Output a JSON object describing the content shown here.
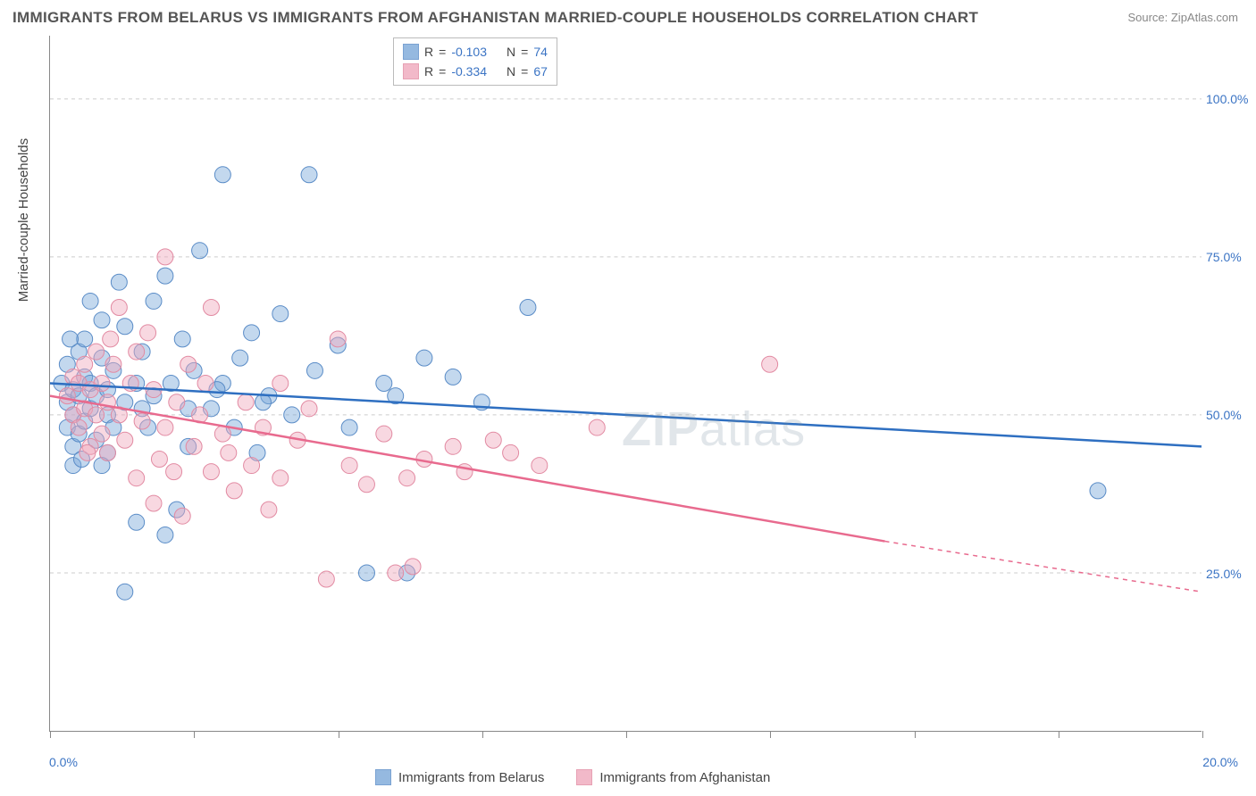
{
  "title": "IMMIGRANTS FROM BELARUS VS IMMIGRANTS FROM AFGHANISTAN MARRIED-COUPLE HOUSEHOLDS CORRELATION CHART",
  "source_prefix": "Source: ",
  "source": "ZipAtlas.com",
  "watermark_bold": "ZIP",
  "watermark_rest": "atlas",
  "yaxis_label": "Married-couple Households",
  "chart": {
    "type": "scatter-with-trendlines",
    "background_color": "#ffffff",
    "grid_color": "#cccccc",
    "axis_color": "#888888",
    "tick_label_color": "#3b74c4",
    "xlim": [
      0,
      20
    ],
    "ylim": [
      0,
      110
    ],
    "y_gridlines": [
      25,
      50,
      75,
      100
    ],
    "y_tick_labels": [
      "25.0%",
      "50.0%",
      "75.0%",
      "100.0%"
    ],
    "x_ticks": [
      0,
      2.5,
      5,
      7.5,
      10,
      12.5,
      15,
      17.5,
      20
    ],
    "x_left_label": "0.0%",
    "x_right_label": "20.0%",
    "marker_radius": 9,
    "marker_opacity": 0.45,
    "trendline_width": 2.5,
    "series": [
      {
        "name": "Immigrants from Belarus",
        "color": "#7ba8d9",
        "stroke": "#5a8cc7",
        "line_color": "#2e6fc1",
        "R": "-0.103",
        "N": "74",
        "trend": {
          "x1": 0,
          "y1": 55,
          "x2": 20,
          "y2": 45,
          "dash_from_x": 20
        },
        "points": [
          [
            0.2,
            55
          ],
          [
            0.3,
            52
          ],
          [
            0.3,
            48
          ],
          [
            0.3,
            58
          ],
          [
            0.4,
            54
          ],
          [
            0.4,
            50
          ],
          [
            0.4,
            45
          ],
          [
            0.5,
            60
          ],
          [
            0.5,
            53
          ],
          [
            0.5,
            47
          ],
          [
            0.6,
            56
          ],
          [
            0.6,
            62
          ],
          [
            0.6,
            49
          ],
          [
            0.7,
            68
          ],
          [
            0.7,
            55
          ],
          [
            0.7,
            51
          ],
          [
            0.8,
            53
          ],
          [
            0.8,
            46
          ],
          [
            0.9,
            65
          ],
          [
            0.9,
            59
          ],
          [
            1.0,
            54
          ],
          [
            1.0,
            50
          ],
          [
            1.1,
            57
          ],
          [
            1.2,
            71
          ],
          [
            1.3,
            52
          ],
          [
            1.3,
            64
          ],
          [
            1.5,
            55
          ],
          [
            1.5,
            33
          ],
          [
            1.6,
            60
          ],
          [
            1.7,
            48
          ],
          [
            1.8,
            68
          ],
          [
            1.8,
            53
          ],
          [
            2.0,
            72
          ],
          [
            2.0,
            31
          ],
          [
            2.1,
            55
          ],
          [
            2.3,
            62
          ],
          [
            2.4,
            45
          ],
          [
            2.5,
            57
          ],
          [
            2.6,
            76
          ],
          [
            2.8,
            51
          ],
          [
            3.0,
            88
          ],
          [
            3.0,
            55
          ],
          [
            3.2,
            48
          ],
          [
            3.3,
            59
          ],
          [
            3.5,
            63
          ],
          [
            3.6,
            44
          ],
          [
            3.8,
            53
          ],
          [
            4.0,
            66
          ],
          [
            4.2,
            50
          ],
          [
            4.5,
            88
          ],
          [
            4.6,
            57
          ],
          [
            5.0,
            61
          ],
          [
            5.2,
            48
          ],
          [
            5.5,
            25
          ],
          [
            5.8,
            55
          ],
          [
            6.0,
            53
          ],
          [
            6.2,
            25
          ],
          [
            6.5,
            59
          ],
          [
            7.0,
            56
          ],
          [
            7.5,
            52
          ],
          [
            8.3,
            67
          ],
          [
            1.3,
            22
          ],
          [
            2.2,
            35
          ],
          [
            1.0,
            44
          ],
          [
            0.4,
            42
          ],
          [
            0.9,
            42
          ],
          [
            2.9,
            54
          ],
          [
            3.7,
            52
          ],
          [
            1.6,
            51
          ],
          [
            1.1,
            48
          ],
          [
            0.35,
            62
          ],
          [
            0.55,
            43
          ],
          [
            18.2,
            38
          ],
          [
            2.4,
            51
          ]
        ]
      },
      {
        "name": "Immigrants from Afghanistan",
        "color": "#f0a8bc",
        "stroke": "#e28aa2",
        "line_color": "#e86a8e",
        "R": "-0.334",
        "N": "67",
        "trend": {
          "x1": 0,
          "y1": 53,
          "x2": 14.5,
          "y2": 30,
          "dash_from_x": 14.5,
          "dash_x2": 20,
          "dash_y2": 22
        },
        "points": [
          [
            0.3,
            53
          ],
          [
            0.4,
            50
          ],
          [
            0.4,
            56
          ],
          [
            0.5,
            48
          ],
          [
            0.5,
            55
          ],
          [
            0.6,
            51
          ],
          [
            0.6,
            58
          ],
          [
            0.7,
            45
          ],
          [
            0.7,
            54
          ],
          [
            0.8,
            50
          ],
          [
            0.8,
            60
          ],
          [
            0.9,
            47
          ],
          [
            0.9,
            55
          ],
          [
            1.0,
            52
          ],
          [
            1.0,
            44
          ],
          [
            1.1,
            58
          ],
          [
            1.2,
            50
          ],
          [
            1.2,
            67
          ],
          [
            1.3,
            46
          ],
          [
            1.4,
            55
          ],
          [
            1.5,
            40
          ],
          [
            1.5,
            60
          ],
          [
            1.6,
            49
          ],
          [
            1.7,
            63
          ],
          [
            1.8,
            36
          ],
          [
            1.8,
            54
          ],
          [
            2.0,
            48
          ],
          [
            2.0,
            75
          ],
          [
            2.2,
            52
          ],
          [
            2.3,
            34
          ],
          [
            2.4,
            58
          ],
          [
            2.5,
            45
          ],
          [
            2.6,
            50
          ],
          [
            2.8,
            41
          ],
          [
            2.8,
            67
          ],
          [
            3.0,
            47
          ],
          [
            3.2,
            38
          ],
          [
            3.4,
            52
          ],
          [
            3.5,
            42
          ],
          [
            3.7,
            48
          ],
          [
            3.8,
            35
          ],
          [
            4.0,
            55
          ],
          [
            4.0,
            40
          ],
          [
            4.3,
            46
          ],
          [
            4.5,
            51
          ],
          [
            4.8,
            24
          ],
          [
            5.0,
            62
          ],
          [
            5.2,
            42
          ],
          [
            5.5,
            39
          ],
          [
            5.8,
            47
          ],
          [
            6.0,
            25
          ],
          [
            6.2,
            40
          ],
          [
            6.3,
            26
          ],
          [
            6.5,
            43
          ],
          [
            7.0,
            45
          ],
          [
            7.2,
            41
          ],
          [
            7.7,
            46
          ],
          [
            8.0,
            44
          ],
          [
            8.5,
            42
          ],
          [
            9.5,
            48
          ],
          [
            12.5,
            58
          ],
          [
            1.9,
            43
          ],
          [
            2.7,
            55
          ],
          [
            3.1,
            44
          ],
          [
            1.05,
            62
          ],
          [
            0.65,
            44
          ],
          [
            2.15,
            41
          ]
        ]
      }
    ]
  },
  "legend_top": {
    "R_label": "R",
    "N_label": "N",
    "equals": " = "
  }
}
